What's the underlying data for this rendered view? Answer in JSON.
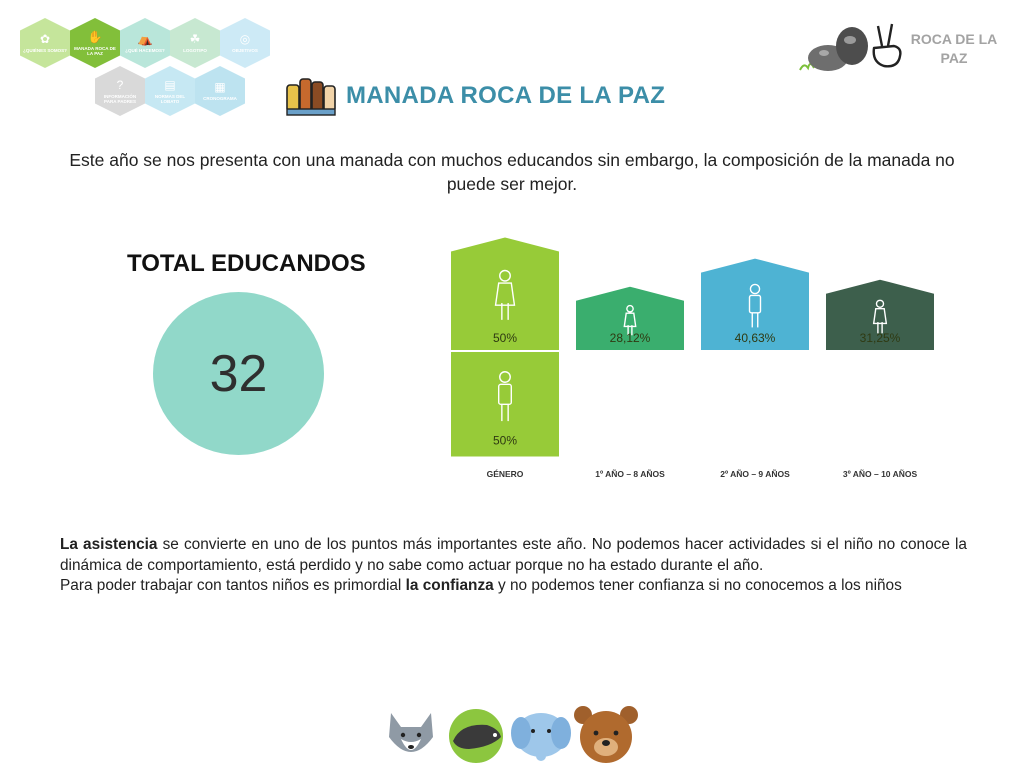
{
  "nav": {
    "items": [
      {
        "label": "¿Quiénes somos?",
        "color": "#c5e59b",
        "icon": "✿"
      },
      {
        "label": "Manada Roca de la Paz",
        "color": "#82bf3a",
        "icon": "✋"
      },
      {
        "label": "¿Qué hacemos?",
        "color": "#b9e6da",
        "icon": "⛺"
      },
      {
        "label": "Logotipo",
        "color": "#c7e8d1",
        "icon": "☘"
      },
      {
        "label": "Objetivos",
        "color": "#cdeaf6",
        "icon": "◎"
      },
      {
        "label": "Información para padres",
        "color": "#d9d9d9",
        "icon": "?"
      },
      {
        "label": "Normas del lobato",
        "color": "#c6e8f3",
        "icon": "▤"
      },
      {
        "label": "Cronograma",
        "color": "#bde3f0",
        "icon": "▦"
      }
    ]
  },
  "logo": {
    "text": "ROCA DE LA PAZ"
  },
  "title": "MANADA ROCA DE LA PAZ",
  "intro": "Este año se nos presenta con una manada con muchos educandos sin embargo, la composición de la manada no puede ser mejor.",
  "total": {
    "label": "TOTAL EDUCANDOS",
    "value": "32",
    "circle_color": "#91d8c9"
  },
  "chart_data": {
    "type": "bar",
    "categories": [
      "GÉNERO",
      "1º AÑO – 8 AÑOS",
      "2º AÑO – 9 AÑOS",
      "3º AÑO – 10 AÑOS"
    ],
    "series": [
      {
        "values": [
          50,
          28.12,
          40.63,
          31.25
        ],
        "labels": [
          "50%",
          "28,12%",
          "40,63%",
          "31,25%"
        ],
        "colors": [
          "#97cb38",
          "#3aae6e",
          "#4eb3d3",
          "#3d5f4c"
        ]
      },
      {
        "values": [
          50,
          null,
          null,
          null
        ],
        "labels": [
          "50%",
          "",
          "",
          ""
        ],
        "colors": [
          "#97cb38",
          "",
          "",
          ""
        ]
      }
    ],
    "ylim": [
      0,
      100
    ]
  },
  "paragraph": {
    "p1_bold": "La asistencia",
    "p1_rest": " se convierte en uno de los puntos más importantes este año. No podemos hacer actividades si el niño no conoce la dinámica de comportamiento, está perdido y no sabe como actuar porque no ha estado durante el año.",
    "p2_start": "Para poder trabajar con tantos niños es primordial ",
    "p2_bold": "la confianza",
    "p2_end": " y no podemos tener confianza si no conocemos a los niños"
  },
  "animals": [
    "wolf-icon",
    "badger-icon",
    "elephant-icon",
    "bear-icon"
  ]
}
